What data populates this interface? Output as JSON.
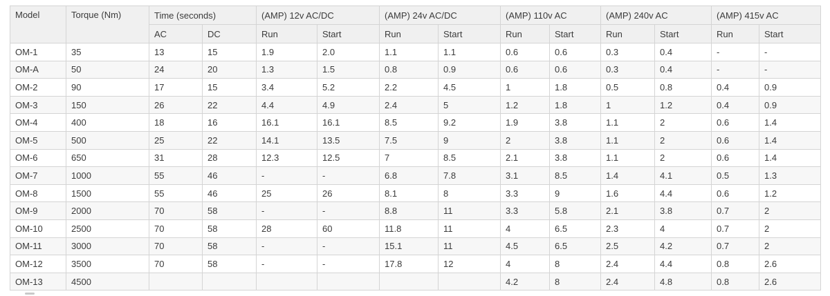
{
  "table": {
    "header": {
      "model": "Model",
      "torque": "Torque (Nm)",
      "groups": [
        {
          "label": "Time (seconds)",
          "sub": [
            "AC",
            "DC"
          ]
        },
        {
          "label": "(AMP) 12v AC/DC",
          "sub": [
            "Run",
            "Start"
          ]
        },
        {
          "label": "(AMP) 24v AC/DC",
          "sub": [
            "Run",
            "Start"
          ]
        },
        {
          "label": "(AMP) 110v AC",
          "sub": [
            "Run",
            "Start"
          ]
        },
        {
          "label": "(AMP) 240v AC",
          "sub": [
            "Run",
            "Start"
          ]
        },
        {
          "label": "(AMP) 415v AC",
          "sub": [
            "Run",
            "Start"
          ]
        }
      ]
    },
    "rows": [
      {
        "model": "OM-1",
        "cells": [
          "35",
          "13",
          "15",
          "1.9",
          "2.0",
          "1.1",
          "1.1",
          "0.6",
          "0.6",
          "0.3",
          "0.4",
          "-",
          "-"
        ]
      },
      {
        "model": "OM-A",
        "cells": [
          "50",
          "24",
          "20",
          "1.3",
          "1.5",
          "0.8",
          "0.9",
          "0.6",
          "0.6",
          "0.3",
          "0.4",
          "-",
          "-"
        ]
      },
      {
        "model": "OM-2",
        "cells": [
          "90",
          "17",
          "15",
          "3.4",
          "5.2",
          "2.2",
          "4.5",
          "1",
          "1.8",
          "0.5",
          "0.8",
          "0.4",
          "0.9"
        ]
      },
      {
        "model": "OM-3",
        "cells": [
          "150",
          "26",
          "22",
          "4.4",
          "4.9",
          "2.4",
          "5",
          "1.2",
          "1.8",
          "1",
          "1.2",
          "0.4",
          "0.9"
        ]
      },
      {
        "model": "OM-4",
        "cells": [
          "400",
          "18",
          "16",
          "16.1",
          "16.1",
          "8.5",
          "9.2",
          "1.9",
          "3.8",
          "1.1",
          "2",
          "0.6",
          "1.4"
        ]
      },
      {
        "model": "OM-5",
        "cells": [
          "500",
          "25",
          "22",
          "14.1",
          "13.5",
          "7.5",
          "9",
          "2",
          "3.8",
          "1.1",
          "2",
          "0.6",
          "1.4"
        ]
      },
      {
        "model": "OM-6",
        "cells": [
          "650",
          "31",
          "28",
          "12.3",
          "12.5",
          "7",
          "8.5",
          "2.1",
          "3.8",
          "1.1",
          "2",
          "0.6",
          "1.4"
        ]
      },
      {
        "model": "OM-7",
        "cells": [
          "1000",
          "55",
          "46",
          "-",
          "-",
          "6.8",
          "7.8",
          "3.1",
          "8.5",
          "1.4",
          "4.1",
          "0.5",
          "1.3"
        ]
      },
      {
        "model": "OM-8",
        "cells": [
          "1500",
          "55",
          "46",
          "25",
          "26",
          "8.1",
          "8",
          "3.3",
          "9",
          "1.6",
          "4.4",
          "0.6",
          "1.2"
        ]
      },
      {
        "model": "OM-9",
        "cells": [
          "2000",
          "70",
          "58",
          "-",
          "-",
          "8.8",
          "11",
          "3.3",
          "5.8",
          "2.1",
          "3.8",
          "0.7",
          "2"
        ]
      },
      {
        "model": "OM-10",
        "cells": [
          "2500",
          "70",
          "58",
          "28",
          "60",
          "11.8",
          "11",
          "4",
          "6.5",
          "2.3",
          "4",
          "0.7",
          "2"
        ]
      },
      {
        "model": "OM-11",
        "cells": [
          "3000",
          "70",
          "58",
          "-",
          "-",
          "15.1",
          "11",
          "4.5",
          "6.5",
          "2.5",
          "4.2",
          "0.7",
          "2"
        ]
      },
      {
        "model": "OM-12",
        "cells": [
          "3500",
          "70",
          "58",
          "-",
          "-",
          "17.8",
          "12",
          "4",
          "8",
          "2.4",
          "4.4",
          "0.8",
          "2.6"
        ]
      },
      {
        "model": "OM-13",
        "cells": [
          "4500",
          "",
          "",
          "",
          "",
          "",
          "",
          "4.2",
          "8",
          "2.4",
          "4.8",
          "0.8",
          "2.6"
        ]
      }
    ]
  }
}
